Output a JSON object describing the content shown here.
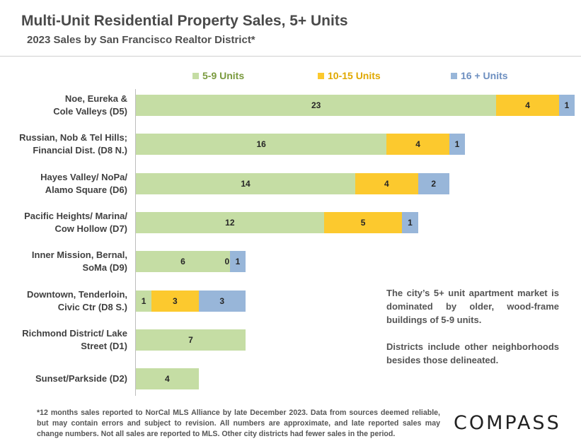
{
  "header": {
    "title": "Multi-Unit Residential Property Sales, 5+ Units",
    "subtitle": "2023 Sales by San Francisco Realtor District*"
  },
  "colors": {
    "series_1": "#c5dda4",
    "series_2": "#fcc92e",
    "series_3": "#98b6d9"
  },
  "chart_data": {
    "type": "bar",
    "orientation": "horizontal",
    "stacked": true,
    "title": "Multi-Unit Residential Property Sales, 5+ Units",
    "subtitle": "2023 Sales by San Francisco Realtor District*",
    "legend_position": "top",
    "categories": [
      "Noe, Eureka &\nCole Valleys (D5)",
      "Russian, Nob & Tel Hills;\nFinancial Dist. (D8 N.)",
      "Hayes Valley/ NoPa/\nAlamo Square (D6)",
      "Pacific Heights/ Marina/\nCow Hollow (D7)",
      "Inner Mission, Bernal,\nSoMa (D9)",
      "Downtown, Tenderloin,\nCivic Ctr (D8 S.)",
      "Richmond District/ Lake\nStreet (D1)",
      "Sunset/Parkside (D2)"
    ],
    "series": [
      {
        "name": "5-9 Units",
        "values": [
          23,
          16,
          14,
          12,
          6,
          1,
          7,
          4
        ],
        "labels": [
          "23",
          "16",
          "14",
          "12",
          "6",
          "1",
          "7",
          "4"
        ]
      },
      {
        "name": "10-15 Units",
        "values": [
          4,
          4,
          4,
          5,
          0,
          3,
          0,
          0
        ],
        "labels": [
          "4",
          "4",
          "4",
          "5",
          "0",
          "3",
          "",
          ""
        ]
      },
      {
        "name": "16 + Units",
        "values": [
          1,
          1,
          2,
          1,
          1,
          3,
          0,
          0
        ],
        "labels": [
          "1",
          "1",
          "2",
          "1",
          "1",
          "3",
          "",
          ""
        ]
      }
    ],
    "xlim": [
      0,
      28
    ],
    "grid": false
  },
  "notes": {
    "paragraph_1": "The city’s 5+ unit apartment market is dominated by older, wood-frame buildings of 5-9 units.",
    "paragraph_2": "Districts include other neighborhoods besides those delineated."
  },
  "footnote": "*12 months sales reported to NorCal MLS Alliance by late December 2023. Data from sources deemed reliable, but may contain errors and subject to revision. All numbers are approximate, and late reported sales may change numbers. Not all sales are reported to MLS. Other city districts had fewer sales in the period.",
  "brand": {
    "logo_text": "COMPASS"
  }
}
